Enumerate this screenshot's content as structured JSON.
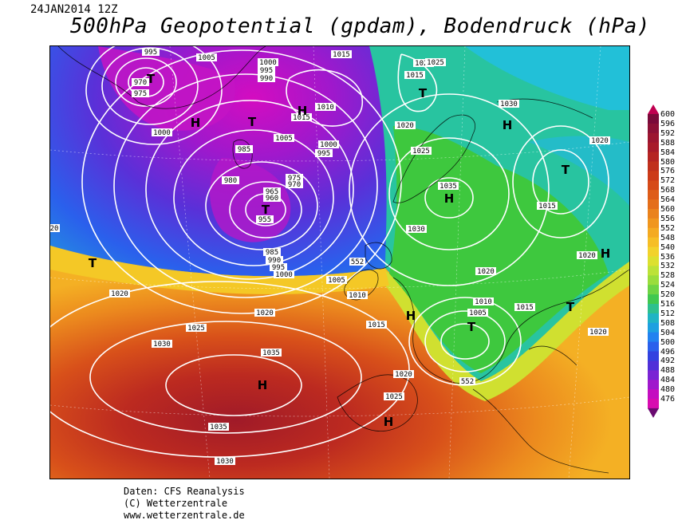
{
  "header": {
    "date": "24JAN2014 12Z",
    "title": "500hPa Geopotential (gpdam), Bodendruck (hPa)"
  },
  "credits": {
    "line1": "Daten: CFS Reanalysis",
    "line2": "(C) Wetterzentrale",
    "line3": "www.wetterzentrale.de"
  },
  "legend": {
    "values": [
      "600",
      "596",
      "592",
      "588",
      "584",
      "580",
      "576",
      "572",
      "568",
      "564",
      "560",
      "556",
      "552",
      "548",
      "540",
      "536",
      "532",
      "528",
      "524",
      "520",
      "516",
      "512",
      "508",
      "504",
      "500",
      "496",
      "492",
      "488",
      "484",
      "480",
      "476"
    ],
    "colors": [
      "#7a0a3a",
      "#8c1036",
      "#9c1530",
      "#a81a2a",
      "#b52422",
      "#c0301c",
      "#cc3a18",
      "#d64a18",
      "#de5c18",
      "#e46e1a",
      "#ea821c",
      "#f0961e",
      "#f4aa22",
      "#f6be26",
      "#f2d22c",
      "#dce030",
      "#bce238",
      "#9add3c",
      "#6ed444",
      "#40c850",
      "#2ec08e",
      "#20b4c4",
      "#1ea0e0",
      "#2282f0",
      "#2a60ec",
      "#3242e0",
      "#5030d8",
      "#7a24d4",
      "#a018cc",
      "#c40ec0",
      "#d80cb0"
    ],
    "arrow_top_color": "#c00050",
    "arrow_bottom_color": "#6a0a70"
  },
  "pressure_labels": [
    "970",
    "975",
    "995",
    "1000",
    "1005",
    "1010",
    "1015",
    "1020",
    "1025",
    "1030",
    "1035",
    "985",
    "980",
    "965",
    "960",
    "955",
    "990",
    "1000",
    "1005",
    "1010",
    "1015",
    "1020",
    "1025",
    "1030",
    "1035"
  ],
  "map_labels": [
    {
      "t": "T"
    },
    {
      "t": "H"
    },
    {
      "t": "T"
    },
    {
      "t": "H"
    },
    {
      "t": "T"
    },
    {
      "t": "T"
    },
    {
      "t": "H"
    },
    {
      "t": "H"
    },
    {
      "t": "T"
    },
    {
      "t": "T"
    },
    {
      "t": "H"
    },
    {
      "t": "T"
    },
    {
      "t": "H"
    },
    {
      "t": "H"
    },
    {
      "t": "T"
    },
    {
      "t": "H"
    }
  ],
  "isobar_values": {
    "a": "970",
    "b": "975",
    "c": "995",
    "d": "1005",
    "e": "1000",
    "f": "995",
    "g": "990",
    "h": "1000",
    "i": "1015",
    "j": "1010",
    "k": "1015",
    "l": "1005",
    "m": "985",
    "n": "1000",
    "o": "995",
    "p": "980",
    "q": "975",
    "r": "970",
    "s": "965",
    "t": "960",
    "u": "955",
    "v": "985",
    "w": "990",
    "x": "995",
    "y": "1000",
    "z": "1005",
    "aa": "1010",
    "ab": "1015",
    "ac": "1020",
    "ad": "1025",
    "ae": "1020",
    "af": "1015",
    "ag": "1020",
    "ah": "1025",
    "ai": "1025",
    "aj": "1030",
    "ak": "1020",
    "al": "1035",
    "am": "1030",
    "an": "1015",
    "ao": "1020",
    "ap": "1010",
    "aq": "1005",
    "ar": "1015",
    "as": "1020",
    "at": "1025",
    "au": "1020",
    "av": "1030",
    "aw": "1025",
    "ax": "1020",
    "ay": "1035",
    "az": "1035",
    "ba": "1030",
    "bb": "1020",
    "bc": "1020",
    "bd": "1020",
    "be": "1015",
    "bf": "1010",
    "bg": "1005",
    "bh": "1015",
    "bi": "1020",
    "bj": "552",
    "bk": "552",
    "bl": "20",
    "bm": "1010"
  }
}
